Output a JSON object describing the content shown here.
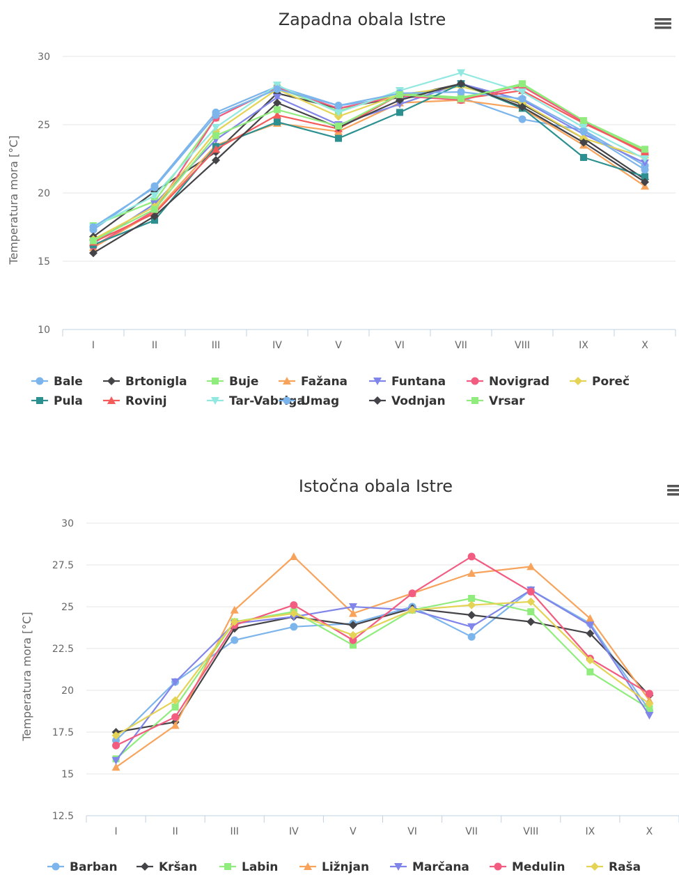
{
  "chart_data": [
    {
      "type": "line",
      "title": "Zapadna obala Istre",
      "xlabel": "",
      "ylabel": "Temperatura mora [°C]",
      "ylim": [
        10,
        30
      ],
      "yticks": [
        "10",
        "15",
        "20",
        "25",
        "30"
      ],
      "categories": [
        "I",
        "II",
        "III",
        "IV",
        "V",
        "VI",
        "VII",
        "VIII",
        "IX",
        "X"
      ],
      "legend_position": "bottom",
      "series": [
        {
          "name": "Bale",
          "color": "#7cb5ec",
          "marker": "circle",
          "values": [
            17.3,
            20.5,
            25.9,
            27.8,
            26.4,
            27.0,
            27.0,
            25.4,
            24.6,
            22.0
          ]
        },
        {
          "name": "Brtonigla",
          "color": "#434348",
          "marker": "diamond",
          "values": [
            16.8,
            20.1,
            23.0,
            27.3,
            26.2,
            27.0,
            28.0,
            26.5,
            24.0,
            21.0
          ]
        },
        {
          "name": "Buje",
          "color": "#90ed7d",
          "marker": "square",
          "values": [
            17.6,
            19.4,
            25.5,
            27.7,
            26.0,
            27.3,
            27.0,
            27.9,
            25.2,
            23.1
          ]
        },
        {
          "name": "Fažana",
          "color": "#f7a35c",
          "marker": "triangle",
          "values": [
            16.0,
            18.6,
            23.5,
            25.1,
            24.5,
            26.6,
            26.8,
            26.2,
            23.5,
            20.5
          ]
        },
        {
          "name": "Funtana",
          "color": "#8085e9",
          "marker": "triangle-down",
          "values": [
            16.3,
            19.2,
            23.9,
            27.0,
            25.0,
            26.5,
            28.0,
            26.8,
            24.3,
            22.2
          ]
        },
        {
          "name": "Novigrad",
          "color": "#f15c80",
          "marker": "circle",
          "values": [
            16.1,
            18.7,
            25.5,
            27.7,
            26.2,
            27.1,
            26.8,
            27.8,
            25.2,
            22.9
          ]
        },
        {
          "name": "Poreč",
          "color": "#e4d354",
          "marker": "diamond",
          "values": [
            16.6,
            19.0,
            24.5,
            27.6,
            25.6,
            27.2,
            27.8,
            26.6,
            24.0,
            22.6
          ]
        },
        {
          "name": "Pula",
          "color": "#2b908f",
          "marker": "square",
          "values": [
            16.2,
            18.0,
            23.4,
            25.2,
            24.0,
            25.9,
            28.0,
            26.2,
            22.6,
            21.2
          ]
        },
        {
          "name": "Rovinj",
          "color": "#f45b5b",
          "marker": "triangle",
          "values": [
            16.4,
            18.5,
            23.2,
            25.7,
            24.7,
            27.2,
            26.9,
            27.5,
            25.1,
            23.0
          ]
        },
        {
          "name": "Tar-Vabriga",
          "color": "#91e8e1",
          "marker": "triangle-down",
          "values": [
            17.5,
            19.8,
            24.8,
            27.9,
            25.9,
            27.5,
            28.8,
            27.4,
            24.8,
            22.5
          ]
        },
        {
          "name": "Umag",
          "color": "#7cb5ec",
          "marker": "circle",
          "values": [
            17.5,
            20.4,
            25.7,
            27.6,
            26.4,
            27.3,
            27.4,
            26.9,
            24.5,
            21.7
          ]
        },
        {
          "name": "Vodnjan",
          "color": "#434348",
          "marker": "diamond",
          "values": [
            15.6,
            18.3,
            22.4,
            26.6,
            24.8,
            26.8,
            28.0,
            26.3,
            23.7,
            20.8
          ]
        },
        {
          "name": "Vrsar",
          "color": "#90ed7d",
          "marker": "square",
          "values": [
            16.5,
            18.8,
            24.2,
            26.1,
            24.9,
            27.2,
            26.9,
            28.0,
            25.3,
            23.2
          ]
        }
      ]
    },
    {
      "type": "line",
      "title": "Istočna obala Istre",
      "xlabel": "",
      "ylabel": "Temperatura mora [°C]",
      "ylim": [
        12.5,
        30
      ],
      "yticks": [
        "12.5",
        "15",
        "17.5",
        "20",
        "22.5",
        "25",
        "27.5",
        "30"
      ],
      "categories": [
        "I",
        "II",
        "III",
        "IV",
        "V",
        "VI",
        "VII",
        "VIII",
        "IX",
        "X"
      ],
      "legend_position": "bottom",
      "series": [
        {
          "name": "Barban",
          "color": "#7cb5ec",
          "marker": "circle",
          "values": [
            17.0,
            20.5,
            23.0,
            23.8,
            24.0,
            25.0,
            23.2,
            26.0,
            24.0,
            18.8
          ]
        },
        {
          "name": "Kršan",
          "color": "#434348",
          "marker": "diamond",
          "values": [
            17.5,
            18.1,
            23.7,
            24.4,
            23.9,
            24.9,
            24.5,
            24.1,
            23.4,
            19.7
          ]
        },
        {
          "name": "Labin",
          "color": "#90ed7d",
          "marker": "square",
          "values": [
            15.9,
            19.0,
            24.1,
            24.7,
            22.7,
            24.8,
            25.5,
            24.7,
            21.1,
            18.9
          ]
        },
        {
          "name": "Ližnjan",
          "color": "#f7a35c",
          "marker": "triangle",
          "values": [
            15.4,
            17.9,
            24.8,
            28.0,
            24.6,
            25.8,
            27.0,
            27.4,
            24.3,
            19.4
          ]
        },
        {
          "name": "Marčana",
          "color": "#8085e9",
          "marker": "triangle-down",
          "values": [
            15.8,
            20.5,
            24.0,
            24.4,
            25.0,
            24.8,
            23.8,
            26.0,
            23.9,
            18.5
          ]
        },
        {
          "name": "Medulin",
          "color": "#f15c80",
          "marker": "circle",
          "values": [
            16.7,
            18.4,
            23.9,
            25.1,
            23.0,
            25.8,
            28.0,
            25.9,
            21.9,
            19.8
          ]
        },
        {
          "name": "Raša",
          "color": "#e4d354",
          "marker": "diamond",
          "values": [
            17.3,
            19.4,
            24.1,
            24.6,
            23.3,
            24.8,
            25.1,
            25.3,
            21.8,
            19.2
          ]
        }
      ]
    }
  ]
}
